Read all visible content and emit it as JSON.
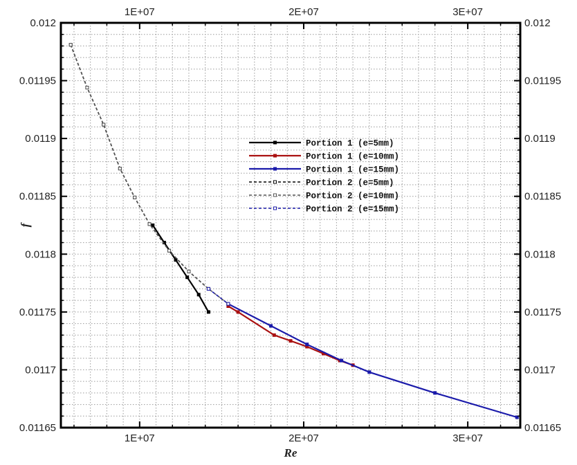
{
  "chart_data": {
    "type": "line",
    "title": "",
    "xlabel": "Re",
    "ylabel": "f",
    "xlim": [
      5200000,
      33200000
    ],
    "ylim": [
      0.01165,
      0.012
    ],
    "x_ticks": [
      10000000,
      20000000,
      30000000
    ],
    "x_tick_labels": [
      "1E+07",
      "2E+07",
      "3E+07"
    ],
    "y_ticks": [
      0.01165,
      0.0117,
      0.01175,
      0.0118,
      0.01185,
      0.0119,
      0.01195,
      0.012
    ],
    "y_tick_labels": [
      "0.01165",
      "0.0117",
      "0.01175",
      "0.0118",
      "0.01185",
      "0.0119",
      "0.01195",
      "0.012"
    ],
    "y_tick_labels_right": [
      "0.01165",
      "0.0117",
      "0.01175",
      "0.0118",
      "0.01185",
      "0.0119",
      "0.01195",
      "0.012"
    ],
    "grid": true,
    "legend_position": "center",
    "series": [
      {
        "name": "Portion 1 (e=5mm)",
        "color": "#000000",
        "style": "solid",
        "x": [
          10800000,
          11500000,
          12200000,
          12900000,
          13600000,
          14200000
        ],
        "y": [
          0.011825,
          0.01181,
          0.011795,
          0.01178,
          0.011765,
          0.01175
        ]
      },
      {
        "name": "Portion 1 (e=10mm)",
        "color": "#aa1111",
        "style": "solid",
        "x": [
          15400000,
          16000000,
          18200000,
          19200000,
          20200000,
          21200000,
          22200000,
          23000000
        ],
        "y": [
          0.011755,
          0.01175,
          0.01173,
          0.011725,
          0.01172,
          0.011714,
          0.011708,
          0.011704
        ]
      },
      {
        "name": "Portion 1 (e=15mm)",
        "color": "#1a1aaa",
        "style": "solid",
        "x": [
          15400000,
          18000000,
          20200000,
          22300000,
          24000000,
          28000000,
          33000000
        ],
        "y": [
          0.011757,
          0.011738,
          0.011722,
          0.011708,
          0.011698,
          0.01168,
          0.011659
        ]
      },
      {
        "name": "Portion 2 (e=5mm)",
        "color": "#000000",
        "style": "dashed",
        "x": [
          5800000,
          6800000,
          7800000,
          8800000,
          9700000,
          10600000,
          11800000,
          13000000,
          14200000
        ],
        "y": [
          0.011981,
          0.011944,
          0.011912,
          0.011874,
          0.011849,
          0.011826,
          0.011803,
          0.011785,
          0.01177
        ]
      },
      {
        "name": "Portion 2 (e=10mm)",
        "color": "#555555",
        "style": "dashed",
        "x": [
          5800000,
          6800000,
          7800000,
          8800000,
          9700000,
          10600000,
          11800000,
          13000000,
          14200000,
          15400000
        ],
        "y": [
          0.011981,
          0.011944,
          0.011912,
          0.011874,
          0.011849,
          0.011826,
          0.011803,
          0.011785,
          0.01177,
          0.011757
        ]
      },
      {
        "name": "Portion 2 (e=15mm)",
        "color": "#1a1aaa",
        "style": "dashed",
        "x": [
          14200000,
          15400000
        ],
        "y": [
          0.01177,
          0.011757
        ]
      }
    ]
  }
}
